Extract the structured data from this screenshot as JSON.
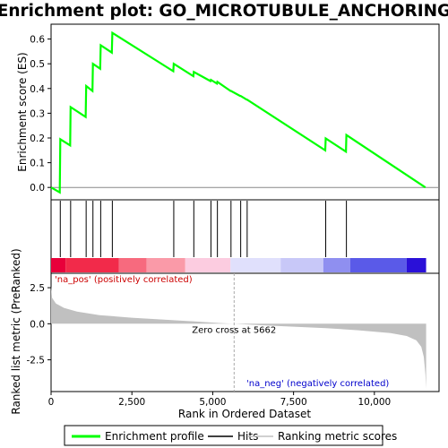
{
  "chart_data": {
    "type": "line",
    "title": "Enrichment plot: GO_MICROTUBULE_ANCHORING",
    "x_range": [
      0,
      12000
    ],
    "total_ranks": 11600,
    "x_ticks": [
      0,
      2500,
      5000,
      7500,
      10000
    ],
    "x_tick_labels": [
      "0",
      "2,500",
      "5,000",
      "7,500",
      "10,000"
    ],
    "xlabel": "Rank in Ordered Dataset",
    "panels": {
      "enrichment": {
        "ylabel": "Enrichment score (ES)",
        "ylim": [
          -0.05,
          0.66
        ],
        "y_ticks": [
          0.0,
          0.1,
          0.2,
          0.3,
          0.4,
          0.5,
          0.6
        ],
        "y_tick_labels": [
          "0.0",
          "0.1",
          "0.2",
          "0.3",
          "0.4",
          "0.5",
          "0.6"
        ],
        "line_color": "#00ff00",
        "profile": [
          [
            0,
            0.0
          ],
          [
            270,
            -0.02
          ],
          [
            285,
            0.195
          ],
          [
            590,
            0.17
          ],
          [
            605,
            0.325
          ],
          [
            1070,
            0.285
          ],
          [
            1085,
            0.41
          ],
          [
            1280,
            0.39
          ],
          [
            1295,
            0.5
          ],
          [
            1520,
            0.48
          ],
          [
            1535,
            0.575
          ],
          [
            1880,
            0.545
          ],
          [
            1895,
            0.625
          ],
          [
            3780,
            0.47
          ],
          [
            3795,
            0.5
          ],
          [
            4400,
            0.45
          ],
          [
            4415,
            0.467
          ],
          [
            4930,
            0.43
          ],
          [
            4945,
            0.435
          ],
          [
            5130,
            0.42
          ],
          [
            5145,
            0.427
          ],
          [
            5550,
            0.39
          ],
          [
            5565,
            0.39
          ],
          [
            5850,
            0.37
          ],
          [
            5865,
            0.37
          ],
          [
            6050,
            0.355
          ],
          [
            6065,
            0.355
          ],
          [
            8480,
            0.15
          ],
          [
            8495,
            0.198
          ],
          [
            9120,
            0.145
          ],
          [
            9135,
            0.212
          ],
          [
            11580,
            0.0
          ]
        ]
      },
      "hits": {
        "positions": [
          285,
          605,
          1085,
          1295,
          1535,
          1895,
          3795,
          4415,
          4945,
          5145,
          5565,
          5865,
          6065,
          8495,
          9135
        ]
      },
      "ranked_metric": {
        "ylabel": "Ranked list metric (PreRanked)",
        "ylim": [
          -4.7,
          3.5
        ],
        "y_ticks": [
          2.5,
          0.0,
          -2.5
        ],
        "y_tick_labels": [
          "2.5",
          "0.0",
          "-2.5"
        ],
        "fill_color": "#c0c0c0",
        "zero_cross_label": "Zero cross at 5662",
        "zero_cross_rank": 5662,
        "pos_label": "'na_pos' (positively correlated)",
        "neg_label": "'na_neg' (negatively correlated)",
        "pos_label_color": "#cc0000",
        "neg_label_color": "#0000cc",
        "profile": [
          [
            0,
            2.6
          ],
          [
            30,
            1.8
          ],
          [
            150,
            1.4
          ],
          [
            400,
            1.1
          ],
          [
            800,
            0.85
          ],
          [
            1500,
            0.6
          ],
          [
            2500,
            0.42
          ],
          [
            3500,
            0.28
          ],
          [
            4500,
            0.15
          ],
          [
            5200,
            0.05
          ],
          [
            5662,
            0.0
          ],
          [
            6500,
            -0.1
          ],
          [
            7500,
            -0.2
          ],
          [
            8500,
            -0.3
          ],
          [
            9500,
            -0.45
          ],
          [
            10500,
            -0.65
          ],
          [
            11000,
            -0.85
          ],
          [
            11300,
            -1.15
          ],
          [
            11450,
            -1.6
          ],
          [
            11530,
            -2.3
          ],
          [
            11580,
            -3.5
          ],
          [
            11600,
            -4.5
          ]
        ]
      },
      "color_bar": {
        "segments": [
          {
            "from": 0,
            "to": 450,
            "color": "#e8003a"
          },
          {
            "from": 450,
            "to": 2100,
            "color": "#f22a4a"
          },
          {
            "from": 2100,
            "to": 2950,
            "color": "#f76a7e"
          },
          {
            "from": 2950,
            "to": 4150,
            "color": "#fa9aa8"
          },
          {
            "from": 4150,
            "to": 5550,
            "color": "#fccce0"
          },
          {
            "from": 5550,
            "to": 7100,
            "color": "#e0e0fc"
          },
          {
            "from": 7100,
            "to": 8420,
            "color": "#c8c8f8"
          },
          {
            "from": 8420,
            "to": 9250,
            "color": "#8f8ff0"
          },
          {
            "from": 9250,
            "to": 11000,
            "color": "#5a5ae8"
          },
          {
            "from": 11000,
            "to": 11600,
            "color": "#2a10d8"
          }
        ]
      }
    },
    "legend": [
      {
        "label": "Enrichment profile",
        "color": "#00ff00",
        "kind": "line-thick"
      },
      {
        "label": "Hits",
        "color": "#000000",
        "kind": "line"
      },
      {
        "label": "Ranking metric scores",
        "color": "#c0c0c0",
        "kind": "line"
      }
    ]
  }
}
